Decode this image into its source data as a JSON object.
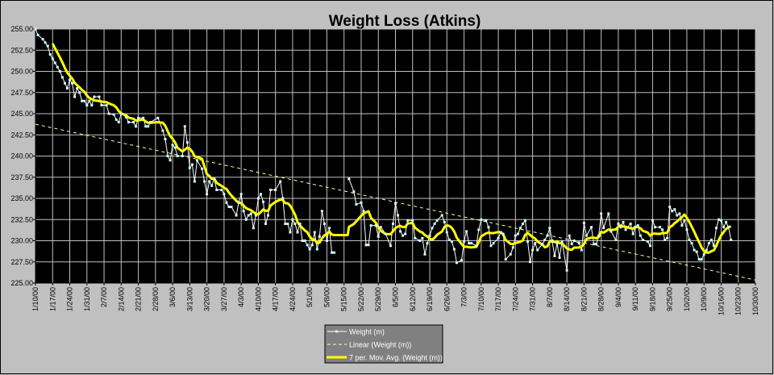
{
  "chart_data": {
    "type": "line",
    "title": "Weight Loss (Atkins)",
    "xlabel": "",
    "ylabel": "",
    "ylim": [
      225,
      255
    ],
    "y_ticks": [
      "225.00",
      "227.50",
      "230.00",
      "232.50",
      "235.00",
      "237.50",
      "240.00",
      "242.50",
      "245.00",
      "247.50",
      "250.00",
      "252.50",
      "255.00"
    ],
    "x_range_days": [
      0,
      294
    ],
    "x_unit": "days since 1/10/00",
    "x_ticks": [
      "1/10/00",
      "1/17/00",
      "1/24/00",
      "1/31/00",
      "2/7/00",
      "2/14/00",
      "2/21/00",
      "2/28/00",
      "3/6/00",
      "3/13/00",
      "3/20/00",
      "3/27/00",
      "4/3/00",
      "4/10/00",
      "4/17/00",
      "4/24/00",
      "5/1/00",
      "5/8/00",
      "5/15/00",
      "5/22/00",
      "5/29/00",
      "6/5/00",
      "6/12/00",
      "6/19/00",
      "6/26/00",
      "7/3/00",
      "7/10/00",
      "7/17/00",
      "7/24/00",
      "7/31/00",
      "8/7/00",
      "8/14/00",
      "8/21/00",
      "8/28/00",
      "9/4/00",
      "9/11/00",
      "9/18/00",
      "9/25/00",
      "10/2/00",
      "10/9/00",
      "10/16/00",
      "10/23/00",
      "10/30/00"
    ],
    "grid": true,
    "legend_position": "bottom-center",
    "legend": [
      "Weight (m)",
      "Linear (Weight (m))",
      "7 per. Mov. Avg. (Weight (m))"
    ],
    "colors": {
      "weight": "#ffffff",
      "marker": "#ccffff",
      "trend": "#ffff99",
      "moving_avg": "#ffff00",
      "plot_bg": "#000000",
      "grid": "#c0c0c0",
      "chart_bg": "#c0c0c0",
      "legend_bg": "#808080"
    },
    "moving_avg_period": 7,
    "series": [
      {
        "name": "Weight (m)",
        "points": [
          [
            0,
            255
          ],
          [
            1,
            254.3
          ],
          [
            3,
            253.8
          ],
          [
            4,
            253.4
          ],
          [
            5,
            253
          ],
          [
            6,
            252
          ],
          [
            7,
            251.5
          ],
          [
            8,
            251
          ],
          [
            9,
            250.5
          ],
          [
            10,
            250
          ],
          [
            11,
            249.3
          ],
          [
            12,
            248.6
          ],
          [
            13,
            248
          ],
          [
            14,
            249
          ],
          [
            15,
            248.6
          ],
          [
            16,
            247
          ],
          [
            17,
            248
          ],
          [
            18,
            247.5
          ],
          [
            19,
            246.5
          ],
          [
            20,
            246.5
          ],
          [
            21,
            246
          ],
          [
            22,
            246.5
          ],
          [
            23,
            246
          ],
          [
            24,
            247
          ],
          [
            26,
            247
          ],
          [
            27,
            246
          ],
          [
            29,
            246
          ],
          [
            30,
            245
          ],
          [
            32,
            244.9
          ],
          [
            33,
            244.3
          ],
          [
            34,
            244
          ],
          [
            35,
            245
          ],
          [
            37,
            244.6
          ],
          [
            38,
            244
          ],
          [
            40,
            244
          ],
          [
            41,
            243.5
          ],
          [
            42,
            244.5
          ],
          [
            44,
            244.5
          ],
          [
            45,
            243.5
          ],
          [
            46,
            243.5
          ],
          [
            47,
            244
          ],
          [
            50,
            244.5
          ],
          [
            52,
            243
          ],
          [
            53,
            242
          ],
          [
            54,
            240
          ],
          [
            55,
            239.5
          ],
          [
            56,
            241.3
          ],
          [
            57,
            241
          ],
          [
            58,
            240
          ],
          [
            60,
            240
          ],
          [
            61,
            243.5
          ],
          [
            62,
            241.6
          ],
          [
            63,
            238.6
          ],
          [
            64,
            239
          ],
          [
            65,
            237
          ],
          [
            66,
            239.5
          ],
          [
            68,
            238.5
          ],
          [
            69,
            237
          ],
          [
            70,
            235.5
          ],
          [
            71,
            237
          ],
          [
            72,
            236.5
          ],
          [
            73,
            237.3
          ],
          [
            74,
            236
          ],
          [
            76,
            236
          ],
          [
            77,
            235.5
          ],
          [
            78,
            234.5
          ],
          [
            79,
            234
          ],
          [
            80,
            234
          ],
          [
            82,
            233
          ],
          [
            83,
            234.5
          ],
          [
            84,
            235.5
          ],
          [
            85,
            233.5
          ],
          [
            86,
            232.5
          ],
          [
            87,
            233
          ],
          [
            88,
            233.2
          ],
          [
            89,
            231.5
          ],
          [
            90,
            233
          ],
          [
            91,
            235
          ],
          [
            92,
            235.5
          ],
          [
            93,
            234.6
          ],
          [
            94,
            232
          ],
          [
            95,
            233
          ],
          [
            96,
            236
          ],
          [
            98,
            236
          ],
          [
            100,
            237
          ],
          [
            101,
            235
          ],
          [
            102,
            232
          ],
          [
            103,
            232
          ],
          [
            104,
            231
          ],
          [
            105,
            232.5
          ],
          [
            106,
            232
          ],
          [
            107,
            231
          ],
          [
            108,
            232
          ],
          [
            109,
            230
          ],
          [
            110,
            230
          ],
          [
            111,
            229.5
          ],
          [
            112,
            229
          ],
          [
            113,
            229.5
          ],
          [
            114,
            231
          ],
          [
            115,
            229
          ],
          [
            116,
            230.5
          ],
          [
            117,
            233.5
          ],
          [
            118,
            232
          ],
          [
            119,
            230
          ],
          [
            120,
            231.5
          ],
          [
            121,
            228.6
          ],
          [
            122,
            228.6
          ],
          [
            128,
            237.3
          ],
          [
            130,
            235.8
          ],
          [
            131,
            234.3
          ],
          [
            133,
            234.5
          ],
          [
            134,
            233.5
          ],
          [
            135,
            229.5
          ],
          [
            136,
            229.5
          ],
          [
            137,
            231.8
          ],
          [
            139,
            231.8
          ],
          [
            140,
            230.5
          ],
          [
            141,
            231.6
          ],
          [
            143,
            230.8
          ],
          [
            145,
            229.4
          ],
          [
            146,
            232
          ],
          [
            147,
            234.4
          ],
          [
            148,
            233
          ],
          [
            149,
            231.1
          ],
          [
            150,
            230.6
          ],
          [
            151,
            230.8
          ],
          [
            152,
            232.4
          ],
          [
            154,
            232.4
          ],
          [
            155,
            230.3
          ],
          [
            157,
            230
          ],
          [
            158,
            230.3
          ],
          [
            159,
            228.4
          ],
          [
            160,
            229.7
          ],
          [
            161,
            230.6
          ],
          [
            162,
            231.5
          ],
          [
            163,
            232
          ],
          [
            164,
            232.4
          ],
          [
            166,
            233
          ],
          [
            167,
            232.2
          ],
          [
            168,
            231
          ],
          [
            169,
            230.1
          ],
          [
            170,
            229.9
          ],
          [
            171,
            229
          ],
          [
            172,
            227.4
          ],
          [
            174,
            227.7
          ],
          [
            175,
            229.9
          ],
          [
            176,
            231.1
          ],
          [
            177,
            229.7
          ],
          [
            178,
            229.7
          ],
          [
            180,
            229.4
          ],
          [
            181,
            231.3
          ],
          [
            182,
            232.5
          ],
          [
            184,
            232.4
          ],
          [
            185,
            231.6
          ],
          [
            186,
            229.4
          ],
          [
            187,
            229.7
          ],
          [
            189,
            230.3
          ],
          [
            190,
            231
          ],
          [
            191,
            230.8
          ],
          [
            192,
            227.8
          ],
          [
            194,
            228.4
          ],
          [
            195,
            229.2
          ],
          [
            196,
            230.6
          ],
          [
            197,
            230.8
          ],
          [
            198,
            231.5
          ],
          [
            199,
            232
          ],
          [
            200,
            232.4
          ],
          [
            201,
            229.9
          ],
          [
            202,
            227.5
          ],
          [
            203,
            228.9
          ],
          [
            204,
            229.7
          ],
          [
            205,
            228.9
          ],
          [
            207,
            229.6
          ],
          [
            208,
            230.1
          ],
          [
            209,
            230.6
          ],
          [
            210,
            231.5
          ],
          [
            211,
            229.9
          ],
          [
            212,
            228.2
          ],
          [
            213,
            229.7
          ],
          [
            214,
            228
          ],
          [
            215,
            229.9
          ],
          [
            217,
            226.5
          ],
          [
            218,
            230.6
          ],
          [
            219,
            229.6
          ],
          [
            220,
            230
          ],
          [
            222,
            229.7
          ],
          [
            223,
            228.9
          ],
          [
            224,
            232.1
          ],
          [
            225,
            230.6
          ],
          [
            227,
            231.6
          ],
          [
            228,
            229.6
          ],
          [
            229,
            229.6
          ],
          [
            230,
            230.6
          ],
          [
            231,
            233.2
          ],
          [
            232,
            231.5
          ],
          [
            234,
            233.2
          ],
          [
            235,
            231.1
          ],
          [
            237,
            230.1
          ],
          [
            238,
            232
          ],
          [
            239,
            231.6
          ],
          [
            240,
            232.2
          ],
          [
            241,
            231.3
          ],
          [
            243,
            232
          ],
          [
            244,
            230.8
          ],
          [
            245,
            231.6
          ],
          [
            246,
            231.8
          ],
          [
            247,
            230.6
          ],
          [
            248,
            230.1
          ],
          [
            250,
            229.9
          ],
          [
            251,
            229.4
          ],
          [
            252,
            232.4
          ],
          [
            253,
            231.6
          ],
          [
            255,
            231.6
          ],
          [
            256,
            231.3
          ],
          [
            257,
            230.1
          ],
          [
            258,
            230.3
          ],
          [
            259,
            234
          ],
          [
            260,
            233.5
          ],
          [
            261,
            233.7
          ],
          [
            262,
            233
          ],
          [
            263,
            233.2
          ],
          [
            264,
            231.8
          ],
          [
            265,
            232.4
          ],
          [
            266,
            231.3
          ],
          [
            267,
            230.1
          ],
          [
            268,
            229.7
          ],
          [
            269,
            228.9
          ],
          [
            270,
            228.7
          ],
          [
            271,
            227.8
          ],
          [
            272,
            227.8
          ],
          [
            273,
            228.4
          ],
          [
            274,
            228.9
          ],
          [
            275,
            229.7
          ],
          [
            276,
            230.1
          ],
          [
            277,
            229.4
          ],
          [
            278,
            231.5
          ],
          [
            279,
            232.5
          ],
          [
            280,
            232.4
          ],
          [
            281,
            231.6
          ],
          [
            282,
            232.2
          ],
          [
            283,
            231.6
          ],
          [
            284,
            230.1
          ]
        ]
      }
    ]
  }
}
